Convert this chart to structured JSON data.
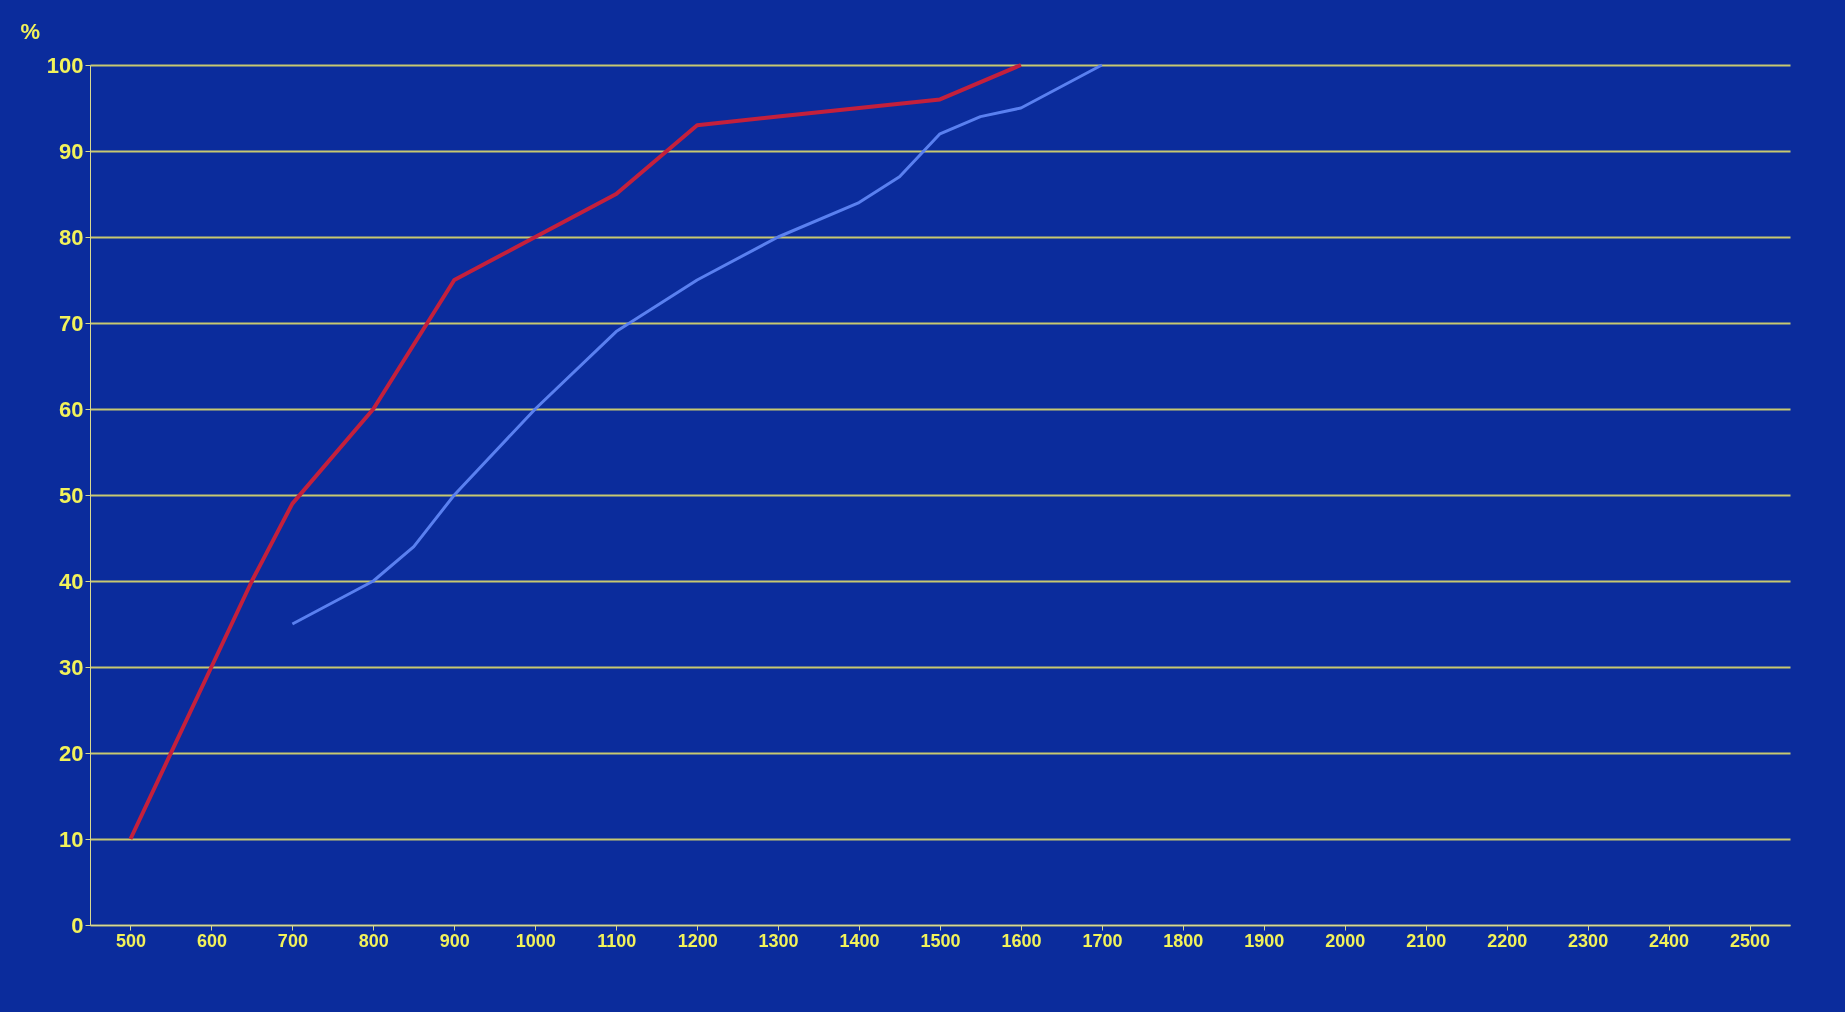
{
  "chart_data": {
    "type": "line",
    "ylabel": "%",
    "series": [
      {
        "color": "#c4203c",
        "x": [
          500,
          600,
          650,
          700,
          800,
          900,
          1000,
          1100,
          1200,
          1300,
          1400,
          1500,
          1600
        ],
        "values": [
          10,
          30,
          40,
          49,
          60,
          75,
          80,
          85,
          93,
          94,
          95,
          96,
          100
        ]
      },
      {
        "color": "#5a80f0",
        "x": [
          700,
          800,
          850,
          900,
          1000,
          1100,
          1200,
          1300,
          1400,
          1450,
          1500,
          1550,
          1600,
          1700
        ],
        "values": [
          35,
          40,
          44,
          50,
          60,
          69,
          75,
          80,
          84,
          87,
          92,
          94,
          95,
          100
        ]
      }
    ],
    "xlim": [
      450,
      2550
    ],
    "xticks": [
      500,
      600,
      700,
      800,
      900,
      1000,
      1100,
      1200,
      1300,
      1400,
      1500,
      1600,
      1700,
      1800,
      1900,
      2000,
      2100,
      2200,
      2300,
      2400,
      2500
    ],
    "ylim": [
      0,
      100
    ],
    "yticks": [
      0,
      10,
      20,
      30,
      40,
      50,
      60,
      70,
      80,
      90,
      100
    ],
    "grid": "y",
    "marker": "none",
    "line_style": "solid"
  }
}
